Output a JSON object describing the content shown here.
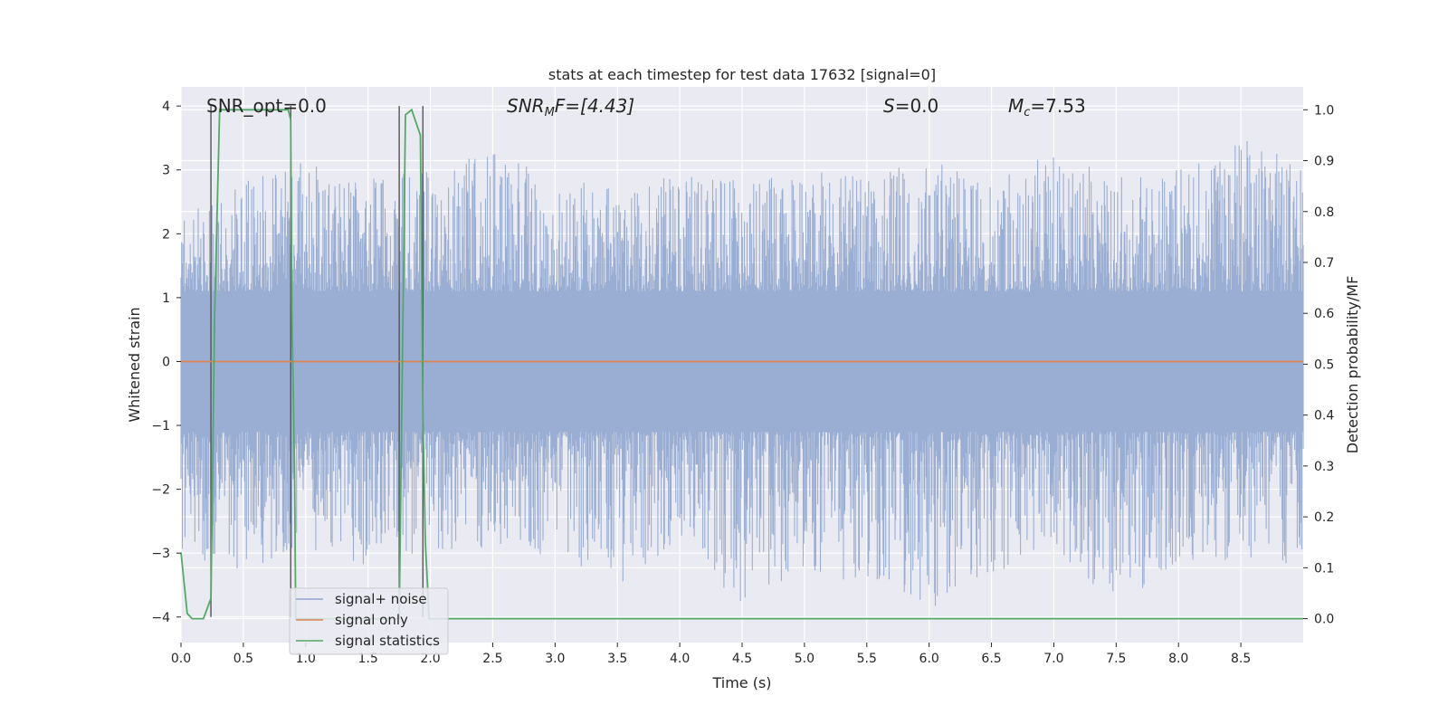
{
  "chart_data": {
    "type": "line",
    "title": "stats at each timestep for test data 17632 [signal=0]",
    "xlabel": "Time (s)",
    "ylabel": "Whitened strain",
    "y2label": "Detection probability/MF",
    "xlim": [
      0.0,
      9.0
    ],
    "ylim": [
      -4.4,
      4.3
    ],
    "y2lim": [
      -0.047,
      1.045
    ],
    "xticks": [
      "0.0",
      "0.5",
      "1.0",
      "1.5",
      "2.0",
      "2.5",
      "3.0",
      "3.5",
      "4.0",
      "4.5",
      "5.0",
      "5.5",
      "6.0",
      "6.5",
      "7.0",
      "7.5",
      "8.0",
      "8.5"
    ],
    "yticks": [
      "4",
      "3",
      "2",
      "1",
      "0",
      "−1",
      "−2",
      "−3",
      "−4"
    ],
    "y2ticks": [
      "1.0",
      "0.9",
      "0.8",
      "0.7",
      "0.6",
      "0.5",
      "0.4",
      "0.3",
      "0.2",
      "0.1",
      "0.0"
    ],
    "grid": true,
    "legend_position": "lower-left",
    "annotations": {
      "snr_opt": "SNR_opt=0.0",
      "snr_mf_prefix": "SNR",
      "snr_mf_sub": "M",
      "snr_mf_suffix": "F=[4.43]",
      "s_label": "S",
      "s_value": "=0.0",
      "mc_label": "M",
      "mc_sub": "c",
      "mc_value": "=7.53"
    },
    "series": [
      {
        "name": "signal+ noise",
        "color": "#4c72b0",
        "note": "whitened strain noise band, approx. amplitude envelope",
        "envelope_upper": [
          2.3,
          2.8,
          3.2,
          2.9,
          3.0,
          3.3,
          2.9,
          2.7,
          3.1,
          2.8,
          3.0,
          2.9,
          3.2,
          2.8,
          3.3,
          2.9,
          3.0,
          3.5,
          3.1
        ],
        "envelope_lower": [
          -3.0,
          -3.3,
          -3.0,
          -3.2,
          -3.0,
          -2.9,
          -3.1,
          -3.5,
          -3.0,
          -3.8,
          -3.3,
          -3.5,
          -3.9,
          -3.4,
          -3.0,
          -3.8,
          -3.3,
          -3.1,
          -3.2
        ]
      },
      {
        "name": "signal only",
        "color": "#dd8452",
        "x": [
          0.0,
          9.0
        ],
        "y": [
          0.0,
          0.0
        ]
      },
      {
        "name": "signal statistics",
        "color": "#55a868",
        "axis": "right",
        "x": [
          0.0,
          0.05,
          0.09,
          0.18,
          0.24,
          0.27,
          0.31,
          0.36,
          0.86,
          0.88,
          0.89,
          0.91,
          0.92,
          1.0,
          1.05,
          1.1,
          1.5,
          1.75,
          1.76,
          1.8,
          1.85,
          1.92,
          1.94,
          1.96,
          1.99,
          2.02,
          2.05,
          2.5,
          9.0
        ],
        "y": [
          0.13,
          0.01,
          0.0,
          0.0,
          0.04,
          0.6,
          1.0,
          1.0,
          1.0,
          0.98,
          0.6,
          0.3,
          0.0,
          0.0,
          0.0,
          0.0,
          0.0,
          0.0,
          0.2,
          0.99,
          1.0,
          0.95,
          0.4,
          0.15,
          0.0,
          0.0,
          0.0,
          0.0,
          0.0
        ]
      }
    ],
    "vertical_markers": [
      0.24,
      0.88,
      1.75,
      1.94
    ]
  }
}
